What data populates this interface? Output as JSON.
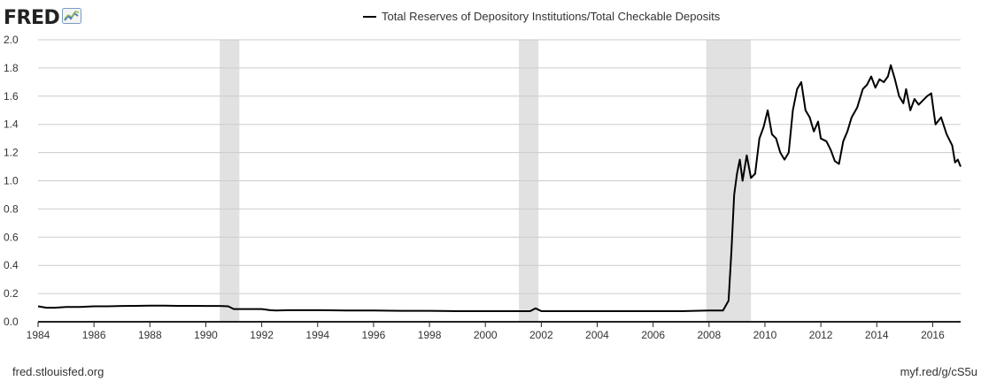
{
  "brand": {
    "logo_text": "FRED",
    "logo_icon": "chart-line-icon"
  },
  "footer": {
    "source_left": "fred.stlouisfed.org",
    "source_right": "myf.red/g/cS5u"
  },
  "colors": {
    "line": "#000000",
    "recession": "#e1e1e1",
    "grid": "#cccccc",
    "axis": "#222222"
  },
  "chart_data": {
    "type": "line",
    "title": "",
    "xlabel": "",
    "ylabel": "",
    "legend": {
      "placement": "top-center",
      "entries": [
        "Total Reserves of Depository Institutions/Total Checkable Deposits"
      ]
    },
    "grid": true,
    "xlim": [
      1984,
      2017
    ],
    "ylim": [
      0,
      2.0
    ],
    "x_ticks": [
      1984,
      1986,
      1988,
      1990,
      1992,
      1994,
      1996,
      1998,
      2000,
      2002,
      2004,
      2006,
      2008,
      2010,
      2012,
      2014,
      2016
    ],
    "y_ticks": [
      "0.0",
      "0.2",
      "0.4",
      "0.6",
      "0.8",
      "1.0",
      "1.2",
      "1.4",
      "1.6",
      "1.8",
      "2.0"
    ],
    "recessions": [
      [
        1990.5,
        1991.2
      ],
      [
        2001.2,
        2001.9
      ],
      [
        2007.9,
        2009.5
      ]
    ],
    "series": [
      {
        "name": "Total Reserves of Depository Institutions/Total Checkable Deposits",
        "x": [
          1984.0,
          1984.3,
          1984.6,
          1985.0,
          1985.5,
          1986.0,
          1986.5,
          1987.0,
          1987.5,
          1988.0,
          1988.5,
          1989.0,
          1989.5,
          1990.0,
          1990.5,
          1990.8,
          1991.0,
          1991.2,
          1991.5,
          1992.0,
          1992.3,
          1992.5,
          1993.0,
          1994.0,
          1995.0,
          1996.0,
          1997.0,
          1998.0,
          1999.0,
          2000.0,
          2001.0,
          2001.6,
          2001.8,
          2002.0,
          2003.0,
          2004.0,
          2005.0,
          2006.0,
          2007.0,
          2008.0,
          2008.5,
          2008.7,
          2008.8,
          2008.9,
          2009.0,
          2009.1,
          2009.2,
          2009.35,
          2009.5,
          2009.65,
          2009.8,
          2009.95,
          2010.1,
          2010.25,
          2010.4,
          2010.55,
          2010.7,
          2010.85,
          2011.0,
          2011.15,
          2011.3,
          2011.45,
          2011.6,
          2011.75,
          2011.9,
          2012.0,
          2012.2,
          2012.35,
          2012.5,
          2012.65,
          2012.8,
          2012.95,
          2013.1,
          2013.3,
          2013.5,
          2013.65,
          2013.8,
          2013.95,
          2014.1,
          2014.25,
          2014.4,
          2014.5,
          2014.65,
          2014.8,
          2014.95,
          2015.05,
          2015.2,
          2015.35,
          2015.5,
          2015.65,
          2015.8,
          2015.95,
          2016.1,
          2016.3,
          2016.5,
          2016.7,
          2016.8,
          2016.9,
          2017.0
        ],
        "values": [
          0.11,
          0.1,
          0.1,
          0.105,
          0.105,
          0.11,
          0.11,
          0.112,
          0.113,
          0.114,
          0.114,
          0.113,
          0.113,
          0.112,
          0.112,
          0.11,
          0.09,
          0.09,
          0.09,
          0.09,
          0.082,
          0.08,
          0.082,
          0.082,
          0.08,
          0.08,
          0.078,
          0.078,
          0.075,
          0.075,
          0.075,
          0.075,
          0.095,
          0.075,
          0.075,
          0.075,
          0.075,
          0.075,
          0.075,
          0.08,
          0.08,
          0.15,
          0.5,
          0.9,
          1.05,
          1.15,
          1.0,
          1.18,
          1.02,
          1.05,
          1.3,
          1.38,
          1.5,
          1.33,
          1.3,
          1.2,
          1.15,
          1.2,
          1.5,
          1.65,
          1.7,
          1.5,
          1.45,
          1.35,
          1.42,
          1.3,
          1.28,
          1.22,
          1.14,
          1.12,
          1.28,
          1.35,
          1.45,
          1.52,
          1.65,
          1.68,
          1.74,
          1.66,
          1.72,
          1.7,
          1.74,
          1.82,
          1.72,
          1.6,
          1.55,
          1.65,
          1.5,
          1.58,
          1.54,
          1.57,
          1.6,
          1.62,
          1.4,
          1.45,
          1.33,
          1.25,
          1.13,
          1.15,
          1.1
        ]
      }
    ]
  }
}
